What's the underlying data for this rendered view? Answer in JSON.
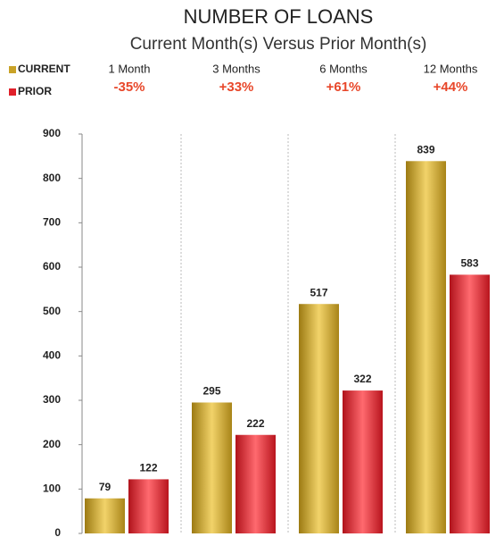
{
  "chart_data": {
    "type": "bar",
    "title": "NUMBER OF LOANS",
    "subtitle": "Current Month(s) Versus Prior Month(s)",
    "categories": [
      "1 Month",
      "3 Months",
      "6 Months",
      "12 Months"
    ],
    "annotations": [
      "-35%",
      "+33%",
      "+61%",
      "+44%"
    ],
    "series": [
      {
        "name": "CURRENT",
        "color": "#c9a227",
        "values": [
          79,
          295,
          517,
          839
        ]
      },
      {
        "name": "PRIOR",
        "color": "#e0202a",
        "values": [
          122,
          222,
          322,
          583
        ]
      }
    ],
    "ylim": [
      0,
      900
    ],
    "yticks": [
      0,
      100,
      200,
      300,
      400,
      500,
      600,
      700,
      800,
      900
    ],
    "legend": "top-left"
  }
}
